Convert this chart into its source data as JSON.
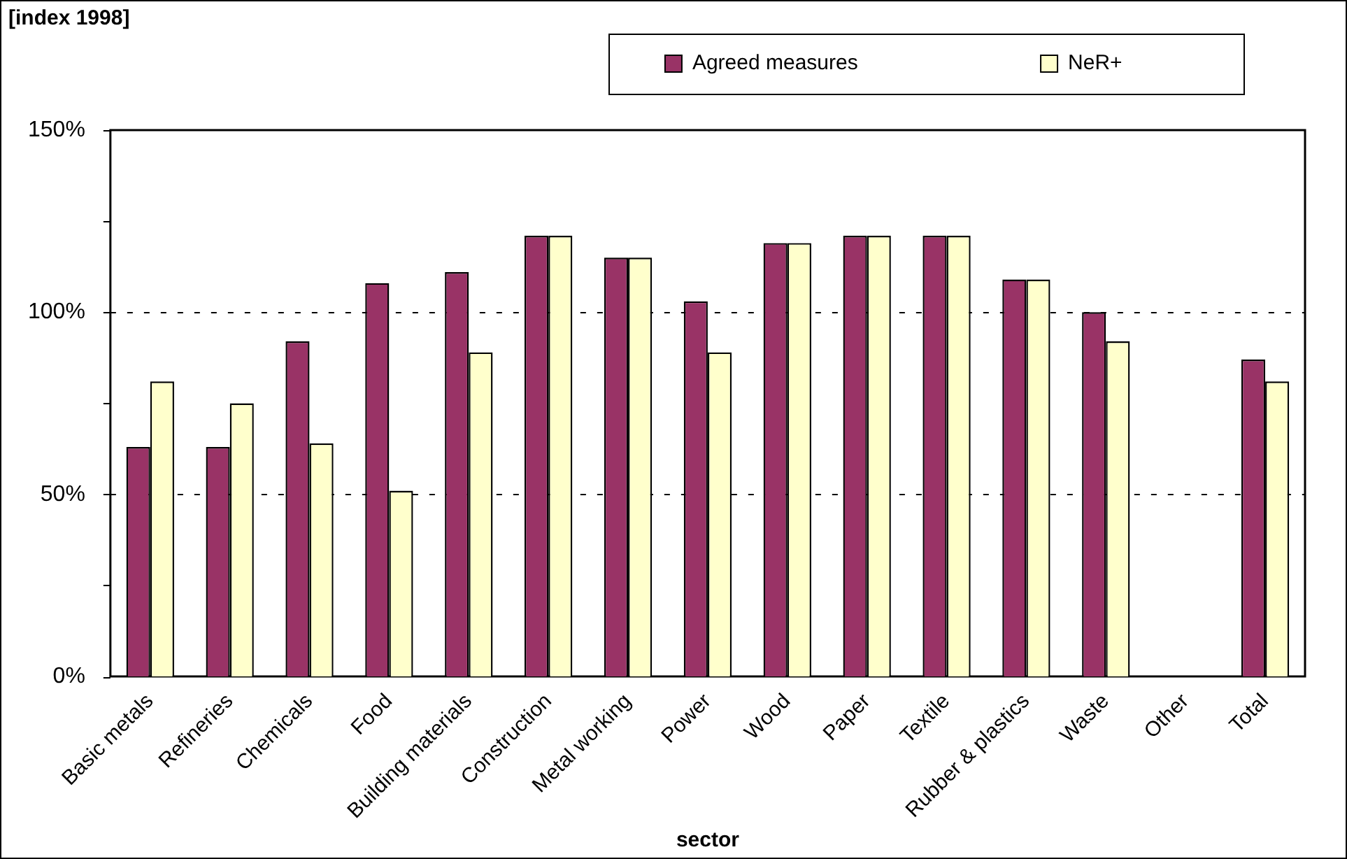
{
  "chart_data": {
    "type": "bar",
    "ylabel": "[index 1998]",
    "xlabel": "sector",
    "categories": [
      "Basic metals",
      "Refineries",
      "Chemicals",
      "Food",
      "Building materials",
      "Construction",
      "Metal working",
      "Power",
      "Wood",
      "Paper",
      "Textile",
      "Rubber & plastics",
      "Waste",
      "Other",
      "Total"
    ],
    "series": [
      {
        "name": "Agreed measures",
        "color": "#993366",
        "values": [
          63,
          63,
          92,
          108,
          111,
          121,
          115,
          103,
          119,
          121,
          121,
          109,
          100,
          null,
          87
        ]
      },
      {
        "name": "NeR+",
        "color": "#ffffcc",
        "values": [
          81,
          75,
          64,
          51,
          89,
          121,
          115,
          89,
          119,
          121,
          121,
          109,
          92,
          null,
          81
        ]
      }
    ],
    "ylim": [
      0,
      150
    ],
    "yticks": [
      {
        "value": 0,
        "label": "0%"
      },
      {
        "value": 25,
        "label": null
      },
      {
        "value": 50,
        "label": "50%"
      },
      {
        "value": 75,
        "label": null
      },
      {
        "value": 100,
        "label": "100%"
      },
      {
        "value": 125,
        "label": null
      },
      {
        "value": 150,
        "label": "150%"
      }
    ],
    "grid": "y",
    "legend": "top right"
  }
}
